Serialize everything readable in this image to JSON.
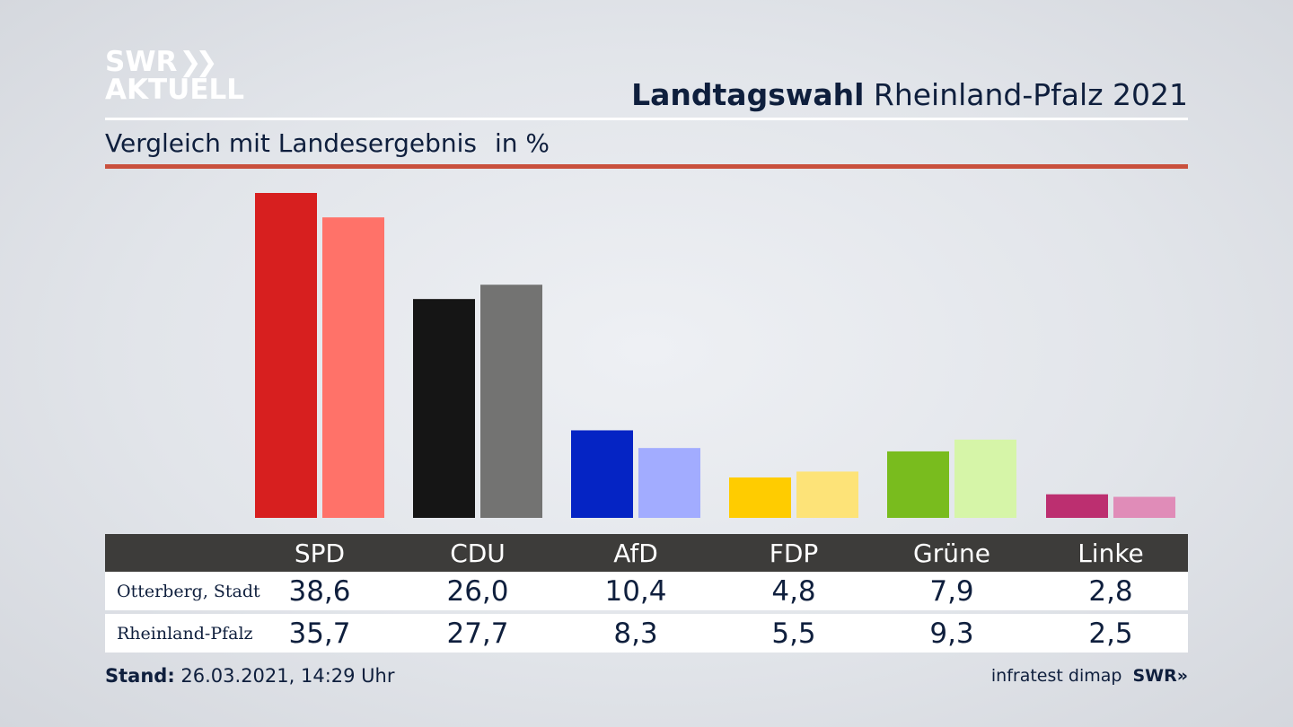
{
  "logo": {
    "line1": "SWR",
    "line2": "AKTUELL"
  },
  "header": {
    "title_bold": "Landtagswahl",
    "title_rest": " Rheinland-Pfalz 2021",
    "subtitle": "Vergleich mit Landesergebnis",
    "unit": "in %"
  },
  "table": {
    "row_labels": [
      "Otterberg, Stadt",
      "Rheinland-Pfalz"
    ],
    "col_headers": [
      "SPD",
      "CDU",
      "AfD",
      "FDP",
      "Grüne",
      "Linke"
    ],
    "rows": [
      [
        "38,6",
        "26,0",
        "10,4",
        "4,8",
        "7,9",
        "2,8"
      ],
      [
        "35,7",
        "27,7",
        "8,3",
        "5,5",
        "9,3",
        "2,5"
      ]
    ]
  },
  "footer": {
    "stand_label": "Stand:",
    "stand_value": " 26.03.2021, 14:29 Uhr",
    "source": "infratest dimap",
    "brand": "SWR"
  },
  "chart_data": {
    "type": "bar",
    "title": "Landtagswahl Rheinland-Pfalz 2021",
    "subtitle": "Vergleich mit Landesergebnis",
    "ylabel": "in %",
    "categories": [
      "SPD",
      "CDU",
      "AfD",
      "FDP",
      "Grüne",
      "Linke"
    ],
    "series": [
      {
        "name": "Otterberg, Stadt",
        "values": [
          38.6,
          26.0,
          10.4,
          4.8,
          7.9,
          2.8
        ],
        "colors": [
          "#d71f1f",
          "#151515",
          "#0524c4",
          "#ffcc00",
          "#79bc1e",
          "#bc2f70"
        ]
      },
      {
        "name": "Rheinland-Pfalz",
        "values": [
          35.7,
          27.7,
          8.3,
          5.5,
          9.3,
          2.5
        ],
        "colors": [
          "#ff7269",
          "#737372",
          "#a2acff",
          "#fde378",
          "#d6f5a8",
          "#e08cb8"
        ]
      }
    ],
    "ylim": [
      0,
      38.6
    ],
    "grid": false,
    "legend": "none"
  }
}
